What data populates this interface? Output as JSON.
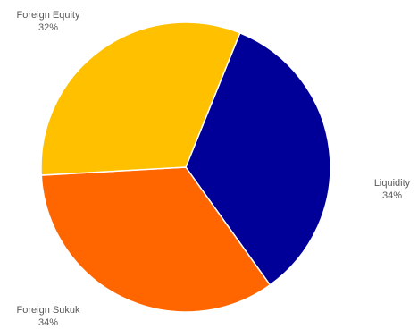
{
  "chart_data": {
    "type": "pie",
    "title": "",
    "slices": [
      {
        "name": "Liquidity",
        "value": 34,
        "value_label": "34%",
        "color": "#000099"
      },
      {
        "name": "Foreign Sukuk",
        "value": 34,
        "value_label": "34%",
        "color": "#FF6600"
      },
      {
        "name": "Foreign Equity",
        "value": 32,
        "value_label": "32%",
        "color": "#FFC000"
      }
    ],
    "start_angle_deg": 22,
    "direction": "clockwise",
    "legend": "none",
    "data_labels": "outside"
  }
}
